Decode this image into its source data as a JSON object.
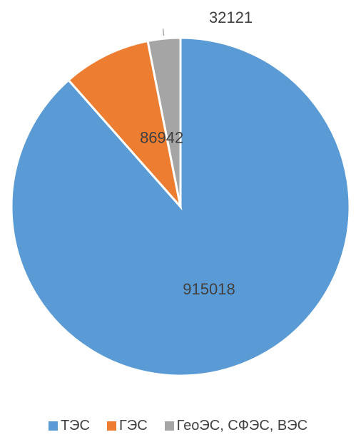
{
  "chart_data": {
    "type": "pie",
    "title": "",
    "legend_position": "bottom",
    "slices": [
      {
        "label": "ТЭС",
        "value": 915018,
        "color": "#5B9BD5"
      },
      {
        "label": "ГЭС",
        "value": 86942,
        "color": "#ED7D31"
      },
      {
        "label": "ГеоЭС, СФЭС, ВЭС",
        "value": 32121,
        "color": "#A5A5A5"
      }
    ]
  }
}
